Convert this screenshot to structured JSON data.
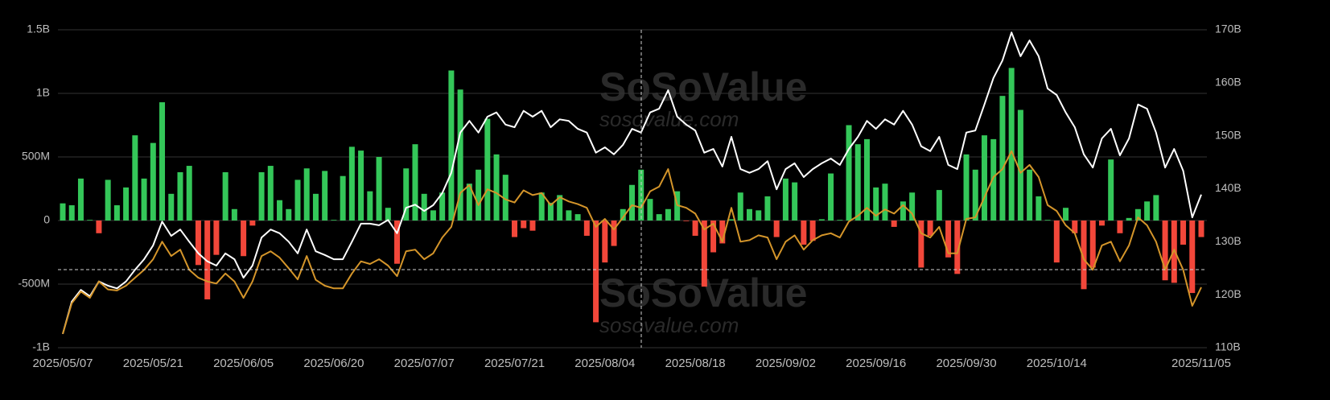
{
  "chart_data": {
    "type": "bar",
    "watermark": [
      "SoSoValue",
      "sosovalue.com"
    ],
    "categories": [
      "2025/05/07",
      null,
      null,
      null,
      null,
      null,
      null,
      null,
      null,
      null,
      "2025/05/21",
      null,
      null,
      null,
      null,
      null,
      null,
      null,
      null,
      null,
      "2025/06/05",
      null,
      null,
      null,
      null,
      null,
      null,
      null,
      null,
      null,
      "2025/06/20",
      null,
      null,
      null,
      null,
      null,
      null,
      null,
      null,
      null,
      "2025/07/07",
      null,
      null,
      null,
      null,
      null,
      null,
      null,
      null,
      null,
      "2025/07/21",
      null,
      null,
      null,
      null,
      null,
      null,
      null,
      null,
      null,
      "2025/08/04",
      null,
      null,
      null,
      null,
      null,
      null,
      null,
      null,
      null,
      "2025/08/18",
      null,
      null,
      null,
      null,
      null,
      null,
      null,
      null,
      null,
      "2025/09/02",
      null,
      null,
      null,
      null,
      null,
      null,
      null,
      null,
      null,
      "2025/09/16",
      null,
      null,
      null,
      null,
      null,
      null,
      null,
      null,
      null,
      "2025/09/30",
      null,
      null,
      null,
      null,
      null,
      null,
      null,
      null,
      null,
      "2025/10/14",
      null,
      null,
      null,
      null,
      null,
      null,
      null,
      null,
      null,
      null,
      null,
      null,
      null,
      null,
      null,
      "2025/11/05"
    ],
    "ylim": [
      -1000,
      1500
    ],
    "yticks": [
      {
        "value": -1000,
        "label": "-1B"
      },
      {
        "value": -500,
        "label": "-500M"
      },
      0,
      {
        "value": 500,
        "label": "500M"
      },
      {
        "value": 1000,
        "label": "1B"
      },
      {
        "value": 1500,
        "label": "1.5B"
      }
    ],
    "y2lim": [
      110,
      170
    ],
    "y2ticks": [
      {
        "value": 110,
        "label": "110B"
      },
      {
        "value": 120,
        "label": "120B"
      },
      {
        "value": 130,
        "label": "130B"
      },
      {
        "value": 140,
        "label": "140B"
      },
      {
        "value": 150,
        "label": "150B"
      },
      {
        "value": 160,
        "label": "160B"
      },
      {
        "value": 170,
        "label": "170B"
      }
    ],
    "grid": true,
    "series": [
      {
        "type": "bar",
        "color": "#34c759",
        "negative_color": "#f2473a",
        "values": [
          135,
          120,
          330,
          5,
          -100,
          320,
          120,
          260,
          670,
          330,
          610,
          930,
          210,
          380,
          430,
          -350,
          -620,
          -270,
          380,
          90,
          -280,
          -40,
          380,
          430,
          160,
          90,
          320,
          410,
          210,
          390,
          5,
          350,
          580,
          550,
          230,
          500,
          100,
          -340,
          410,
          600,
          210,
          80,
          220,
          1180,
          1030,
          290,
          400,
          800,
          520,
          360,
          -130,
          -60,
          -80,
          220,
          140,
          200,
          80,
          50,
          -120,
          -800,
          -330,
          -200,
          90,
          280,
          400,
          170,
          50,
          90,
          230,
          -5,
          -120,
          -520,
          -250,
          -180,
          10,
          220,
          90,
          80,
          190,
          -130,
          330,
          300,
          -190,
          -160,
          10,
          370,
          5,
          750,
          600,
          640,
          260,
          290,
          -50,
          150,
          220,
          -370,
          -120,
          240,
          -290,
          -420,
          520,
          400,
          670,
          640,
          980,
          1200,
          870,
          400,
          190,
          5,
          -330,
          100,
          -100,
          -540,
          -370,
          -40,
          480,
          -100,
          20,
          90,
          150,
          200,
          -470,
          -490,
          -190,
          -570,
          -130
        ]
      },
      {
        "type": "line",
        "axis": "y2",
        "color": "#ffffff",
        "values": [
          112.6,
          118.7,
          120.9,
          119.7,
          122.5,
          121.7,
          121.2,
          122.5,
          124.7,
          126.7,
          129.3,
          133.8,
          131.1,
          132.3,
          130,
          127.8,
          126.3,
          125.5,
          127.8,
          126.7,
          123.2,
          125.5,
          130.8,
          132.3,
          131.6,
          130,
          127.8,
          132.3,
          128.2,
          127.5,
          126.7,
          126.7,
          130,
          133.4,
          133.4,
          133.1,
          134.1,
          131.6,
          136.4,
          137,
          135.8,
          136.9,
          139.2,
          143,
          150.6,
          152.8,
          150.6,
          153.6,
          154.4,
          152.1,
          151.6,
          154.7,
          153.6,
          154.7,
          151.6,
          153.1,
          152.8,
          151.3,
          150.6,
          146.8,
          147.8,
          146.5,
          148.3,
          151.3,
          150.6,
          154.4,
          155.1,
          158.6,
          153.6,
          152.1,
          151,
          146.8,
          147.5,
          144.2,
          149.8,
          143.7,
          143,
          143.7,
          145.2,
          139.9,
          143.7,
          144.8,
          142.2,
          143.7,
          144.8,
          145.7,
          144.5,
          147.5,
          149.8,
          152.8,
          151.3,
          153.1,
          152.1,
          154.7,
          152.1,
          148,
          147.1,
          149.8,
          144.5,
          143.7,
          150.6,
          151,
          155.9,
          160.9,
          164.2,
          169.5,
          165,
          168,
          165,
          158.9,
          157.7,
          154.4,
          151.6,
          146.5,
          144,
          149.5,
          151.3,
          146.3,
          149.5,
          155.9,
          155.1,
          150.6,
          144,
          147.5,
          143.4,
          134.6,
          138.9
        ]
      },
      {
        "type": "line",
        "axis": "y2",
        "color": "#d4952a",
        "values": [
          112.6,
          118.4,
          120.6,
          119.4,
          122.5,
          121,
          120.8,
          121.7,
          123.2,
          124.7,
          126.7,
          130,
          127.3,
          128.5,
          124.7,
          123.2,
          122.5,
          122.1,
          124,
          122.5,
          119.4,
          122.5,
          127.3,
          128.2,
          127,
          125,
          122.9,
          127.3,
          122.8,
          121.7,
          121.2,
          121.2,
          124,
          126.3,
          125.8,
          126.7,
          125.5,
          123.5,
          128.2,
          128.5,
          126.7,
          127.8,
          130.8,
          132.8,
          139.2,
          140.7,
          136.9,
          139.9,
          139.2,
          138,
          137.4,
          139.7,
          138.8,
          139.2,
          136.9,
          138.4,
          137.6,
          137.1,
          136.4,
          132.8,
          134.3,
          132.3,
          134.6,
          136.9,
          136.4,
          139.5,
          140.4,
          143.7,
          136.9,
          136.4,
          135.3,
          132.3,
          133.4,
          130,
          136.4,
          130,
          130.3,
          131.2,
          130.8,
          126.7,
          130,
          131.2,
          128.5,
          130.3,
          131.2,
          131.6,
          130.8,
          133.8,
          134.9,
          136.4,
          134.9,
          136.1,
          135.3,
          136.9,
          135.3,
          131.6,
          130.8,
          132.8,
          127.8,
          127.8,
          134.3,
          134.6,
          138.4,
          142.2,
          143.7,
          147.1,
          143,
          144.5,
          142.2,
          136.9,
          135.8,
          133.1,
          131.6,
          126.7,
          124.7,
          129.3,
          130,
          126.3,
          129.3,
          134.6,
          133.1,
          130,
          124.7,
          128.5,
          124.7,
          117.9,
          121.4
        ]
      }
    ]
  }
}
